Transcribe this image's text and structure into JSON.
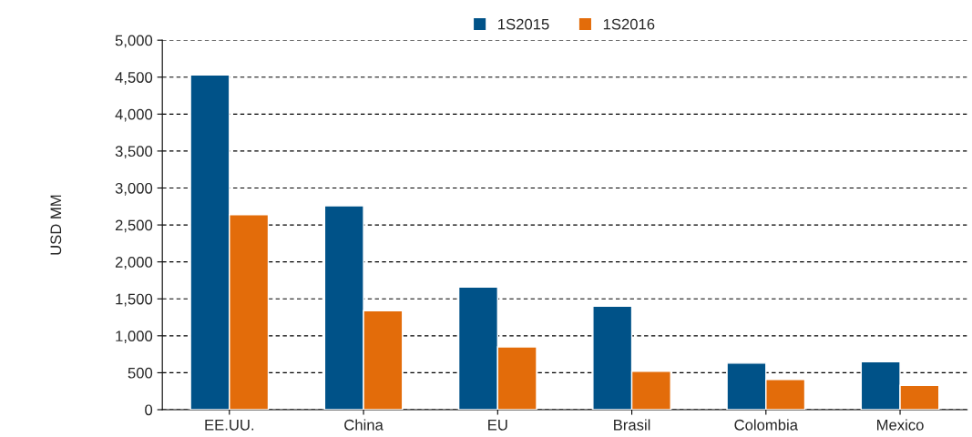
{
  "chart_data": {
    "type": "bar",
    "ylabel": "USD MM",
    "categories": [
      "EE.UU.",
      "China",
      "EU",
      "Brasil",
      "Colombia",
      "Mexico"
    ],
    "series": [
      {
        "name": "1S2015",
        "color": "#005288",
        "values": [
          4530,
          2760,
          1660,
          1400,
          630,
          650
        ]
      },
      {
        "name": "1S2016",
        "color": "#e36c0a",
        "values": [
          2640,
          1340,
          850,
          520,
          410,
          330
        ]
      }
    ],
    "ylim": [
      0,
      5000
    ],
    "yticks": [
      {
        "value": 0,
        "label": "0"
      },
      {
        "value": 500,
        "label": "500"
      },
      {
        "value": 1000,
        "label": "1,000"
      },
      {
        "value": 1500,
        "label": "1,500"
      },
      {
        "value": 2000,
        "label": "2,000"
      },
      {
        "value": 2500,
        "label": "2,500"
      },
      {
        "value": 3000,
        "label": "3,000"
      },
      {
        "value": 3500,
        "label": "3,500"
      },
      {
        "value": 4000,
        "label": "4,000"
      },
      {
        "value": 4500,
        "label": "4,500"
      },
      {
        "value": 5000,
        "label": "5,000"
      }
    ],
    "grid": "y",
    "legend": "top"
  }
}
